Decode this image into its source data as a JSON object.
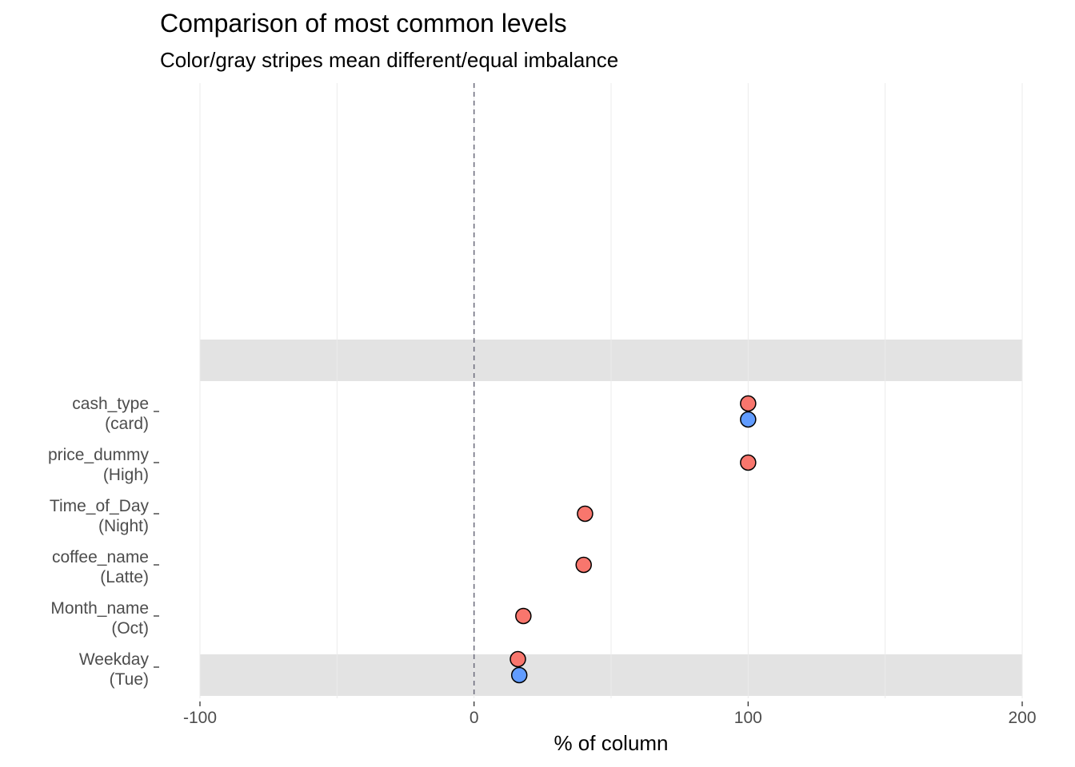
{
  "chart_data": {
    "type": "scatter",
    "title": "Comparison of most common levels",
    "subtitle": "Color/gray stripes mean different/equal imbalance",
    "xlabel": "% of column",
    "ylabel": "",
    "xlim": [
      -100,
      200
    ],
    "x_ticks": [
      "-100",
      "0",
      "100",
      "200"
    ],
    "reference_line_x": 0,
    "grid": "vertical",
    "legend": "none",
    "colors": {
      "red": "#F8766D",
      "blue": "#619CFF",
      "stripe": "#e3e3e3",
      "dashed": "#6b6b7b"
    },
    "categories": [
      {
        "name": "cash_type",
        "level": "(card)",
        "striped": false
      },
      {
        "name": "price_dummy",
        "level": "(High)",
        "striped": false
      },
      {
        "name": "Time_of_Day",
        "level": "(Night)",
        "striped": false
      },
      {
        "name": "coffee_name",
        "level": "(Latte)",
        "striped": false
      },
      {
        "name": "Month_name",
        "level": "(Oct)",
        "striped": false
      },
      {
        "name": "Weekday",
        "level": "(Tue)",
        "striped": true
      }
    ],
    "empty_striped_rows": 1,
    "series": [
      {
        "color": "red",
        "values": [
          100,
          100,
          40.5,
          40,
          18,
          16
        ]
      },
      {
        "color": "blue",
        "values": [
          100,
          null,
          null,
          null,
          null,
          16.5
        ]
      }
    ]
  }
}
